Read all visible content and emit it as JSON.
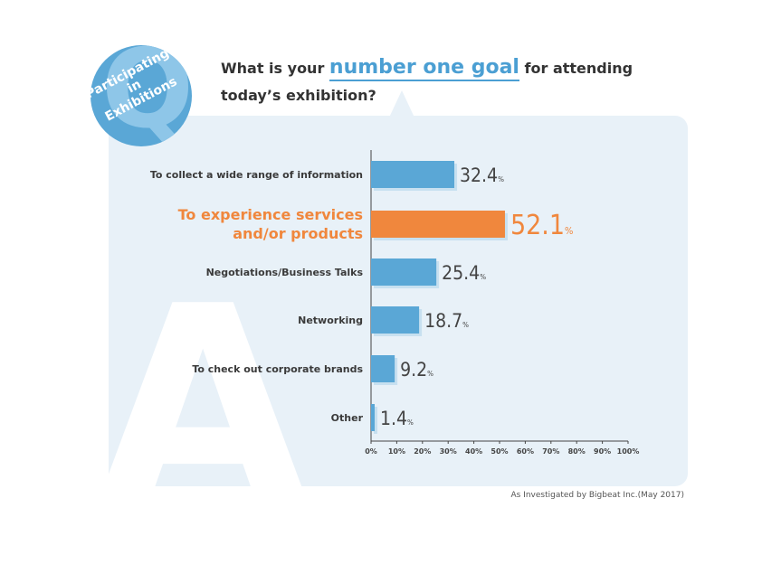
{
  "badge": {
    "letter": "Q",
    "lines": [
      "Participating",
      "in",
      "Exhibitions"
    ]
  },
  "background_letter": "A",
  "question": {
    "before": "What is your",
    "highlight": "number one goal",
    "after": "for attending",
    "line2": "today’s exhibition?"
  },
  "source": "As Investigated by Bigbeat Inc.(May 2017)",
  "colors": {
    "bar": "#5aa7d6",
    "highlight_bar": "#f0873d",
    "bar_shadow": "#c7e0f0",
    "panel": "#e8f1f8",
    "accent_text": "#4b9fd3"
  },
  "chart_data": {
    "type": "bar",
    "orientation": "horizontal",
    "categories": [
      "To collect a wide range of information",
      "To experience services and/or products",
      "Negotiations/Business Talks",
      "Networking",
      "To check out corporate brands",
      "Other"
    ],
    "category_lines": [
      [
        "To collect a wide range of information"
      ],
      [
        "To experience services",
        "and/or products"
      ],
      [
        "Negotiations/Business Talks"
      ],
      [
        "Networking"
      ],
      [
        "To check out corporate brands"
      ],
      [
        "Other"
      ]
    ],
    "values": [
      32.4,
      52.1,
      25.4,
      18.7,
      9.2,
      1.4
    ],
    "value_labels": [
      "32.4",
      "52.1",
      "25.4",
      "18.7",
      "9.2",
      "1.4"
    ],
    "unit": "%",
    "highlight_index": 1,
    "xlim": [
      0,
      100
    ],
    "xticks": [
      "0%",
      "10%",
      "20%",
      "30%",
      "40%",
      "50%",
      "60%",
      "70%",
      "80%",
      "90%",
      "100%"
    ],
    "title": "",
    "xlabel": "",
    "ylabel": "",
    "grid": false
  }
}
